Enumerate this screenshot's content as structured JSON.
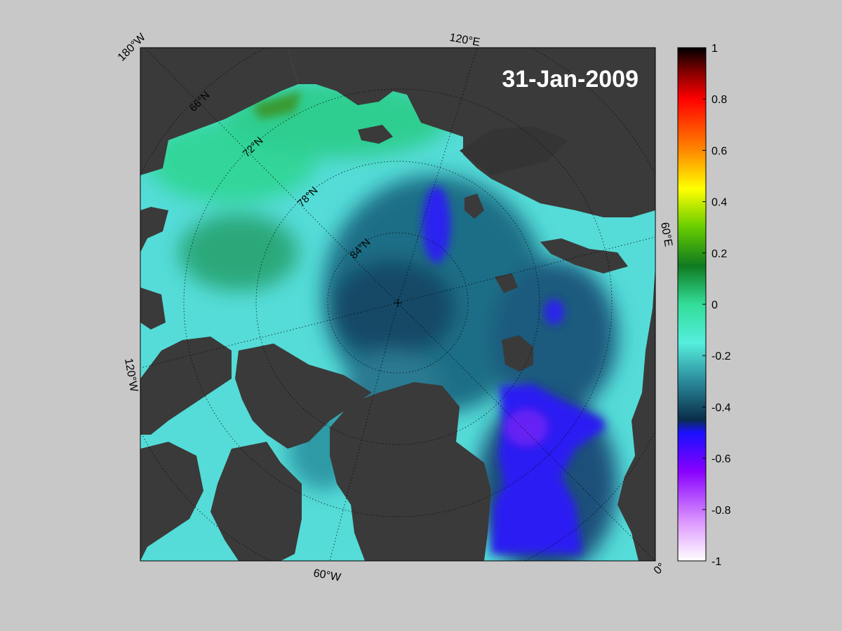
{
  "map": {
    "date": "31-Jan-2009",
    "edge_labels": {
      "top_left": "180°W",
      "top": "120°E",
      "left": "120°W",
      "right": "60°E",
      "bottom": "60°W",
      "bottom_right": "0°"
    },
    "latitude_labels": [
      "66°N",
      "72°N",
      "78°N",
      "84°N"
    ],
    "colors": {
      "land": "#3a3a3a",
      "background": "#c8c8c8"
    }
  },
  "colorbar": {
    "min": -1,
    "max": 1,
    "ticks": [
      "1",
      "0.8",
      "0.6",
      "0.4",
      "0.2",
      "0",
      "-0.2",
      "-0.4",
      "-0.6",
      "-0.8",
      "-1"
    ],
    "stops": [
      {
        "value": 1.0,
        "color": "#000000"
      },
      {
        "value": 0.9,
        "color": "#8b0000"
      },
      {
        "value": 0.8,
        "color": "#ff0000"
      },
      {
        "value": 0.6,
        "color": "#ff8800"
      },
      {
        "value": 0.45,
        "color": "#ffff00"
      },
      {
        "value": 0.3,
        "color": "#66cc00"
      },
      {
        "value": 0.15,
        "color": "#0f7a20"
      },
      {
        "value": 0.0,
        "color": "#33dd99"
      },
      {
        "value": -0.15,
        "color": "#55eedd"
      },
      {
        "value": -0.3,
        "color": "#2a8a9a"
      },
      {
        "value": -0.45,
        "color": "#0a2d4a"
      },
      {
        "value": -0.5,
        "color": "#1a10ff"
      },
      {
        "value": -0.65,
        "color": "#8800ff"
      },
      {
        "value": -0.85,
        "color": "#dd99ff"
      },
      {
        "value": -1.0,
        "color": "#ffffff"
      }
    ]
  }
}
